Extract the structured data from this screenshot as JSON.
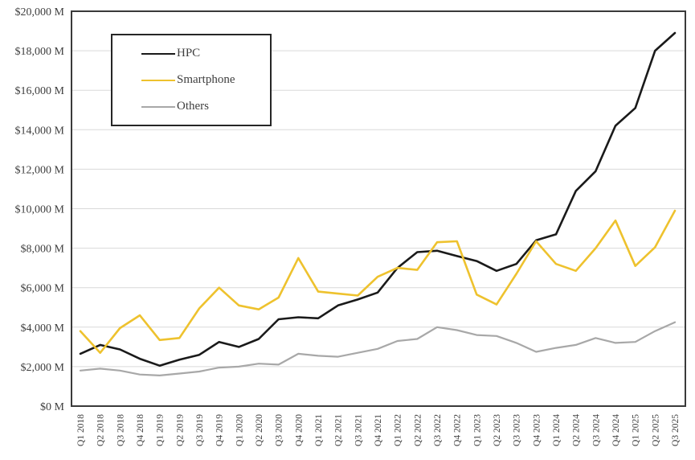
{
  "chart_data": {
    "type": "line",
    "title": "",
    "xlabel": "",
    "ylabel": "",
    "y_unit": "M",
    "y_tick_prefix": "$",
    "y_tick_suffix": " M",
    "ylim": [
      0,
      20000
    ],
    "ytick_step": 2000,
    "grid": "horizontal",
    "legend_position": "top-left-inside",
    "categories": [
      "Q1 2018",
      "Q2 2018",
      "Q3 2018",
      "Q4 2018",
      "Q1 2019",
      "Q2 2019",
      "Q3 2019",
      "Q4 2019",
      "Q1 2020",
      "Q2 2020",
      "Q3 2020",
      "Q4 2020",
      "Q1 2021",
      "Q2 2021",
      "Q3 2021",
      "Q4 2021",
      "Q1 2022",
      "Q2 2022",
      "Q3 2022",
      "Q4 2022",
      "Q1 2023",
      "Q2 2023",
      "Q3 2023",
      "Q4 2023",
      "Q1 2024",
      "Q2 2024",
      "Q3 2024",
      "Q4 2024",
      "Q1 2025",
      "Q2 2025",
      "Q3 2025"
    ],
    "series": [
      {
        "name": "HPC",
        "color": "#1a1a1a",
        "line_width": 2.6,
        "values": [
          2650,
          3100,
          2870,
          2400,
          2050,
          2350,
          2600,
          3250,
          3000,
          3400,
          4400,
          4500,
          4450,
          5100,
          5400,
          5750,
          7000,
          7800,
          7870,
          7600,
          7350,
          6850,
          7200,
          8400,
          8700,
          10900,
          11900,
          14200,
          15100,
          18000,
          18900
        ]
      },
      {
        "name": "Smartphone",
        "color": "#eec22e",
        "line_width": 2.6,
        "values": [
          3800,
          2700,
          3950,
          4600,
          3350,
          3450,
          4950,
          6000,
          5100,
          4900,
          5500,
          7500,
          5800,
          5700,
          5600,
          6550,
          7000,
          6900,
          8300,
          8350,
          5650,
          5150,
          6700,
          8350,
          7200,
          6850,
          8000,
          9400,
          7100,
          8050,
          9900
        ]
      },
      {
        "name": "Others",
        "color": "#a8a8a8",
        "line_width": 2.2,
        "values": [
          1800,
          1900,
          1800,
          1600,
          1550,
          1650,
          1750,
          1950,
          2000,
          2150,
          2100,
          2650,
          2550,
          2500,
          2700,
          2900,
          3300,
          3400,
          4000,
          3850,
          3600,
          3550,
          3200,
          2750,
          2950,
          3100,
          3450,
          3200,
          3250,
          3800,
          4250
        ]
      }
    ]
  },
  "style": {
    "gridline_color": "#d9d9d9",
    "border_color": "#3a3a3a",
    "tick_text_color": "#3f3f3f"
  }
}
